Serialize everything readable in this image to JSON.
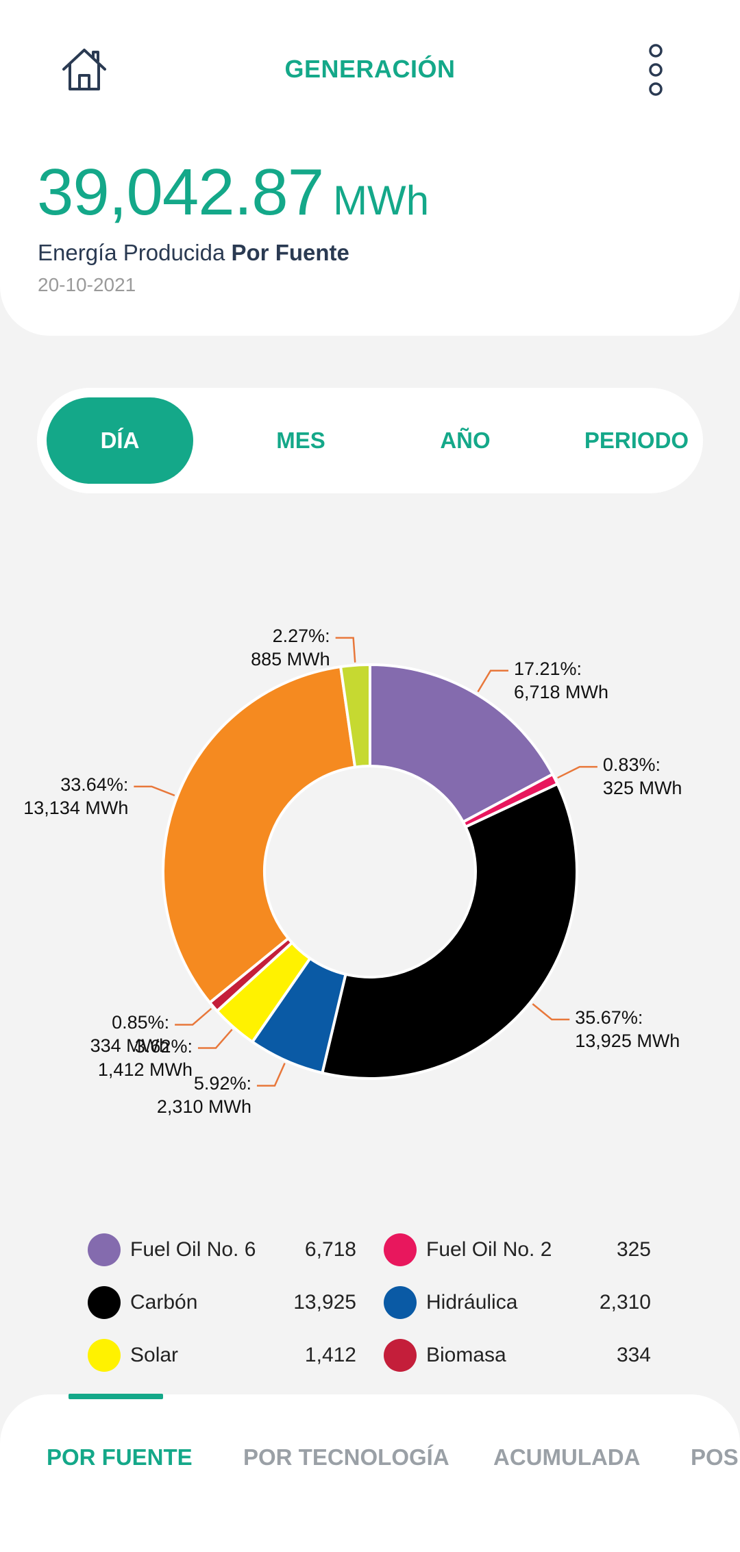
{
  "header": {
    "title": "GENERACIÓN",
    "total_value": "39,042.87",
    "total_unit": "MWh",
    "subtitle_prefix": "Energía Producida ",
    "subtitle_bold": "Por Fuente",
    "date": "20-10-2021"
  },
  "period_tabs": [
    {
      "label": "DÍA",
      "active": true
    },
    {
      "label": "MES",
      "active": false
    },
    {
      "label": "AÑO",
      "active": false
    },
    {
      "label": "PERIODO",
      "active": false
    }
  ],
  "chart_data": {
    "type": "pie",
    "subtype": "donut",
    "unit": "MWh",
    "slices": [
      {
        "name": "Fuel Oil No. 6",
        "value": 6718,
        "percent": 17.21,
        "color": "#846bae",
        "pct_label": "17.21%:",
        "val_label": "6,718 MWh"
      },
      {
        "name": "Fuel Oil No. 2",
        "value": 325,
        "percent": 0.83,
        "color": "#e8175d",
        "pct_label": "0.83%:",
        "val_label": "325 MWh"
      },
      {
        "name": "Carbón",
        "value": 13925,
        "percent": 35.67,
        "color": "#000000",
        "pct_label": "35.67%:",
        "val_label": "13,925 MWh"
      },
      {
        "name": "Hidráulica",
        "value": 2310,
        "percent": 5.92,
        "color": "#0a5aa5",
        "pct_label": "5.92%:",
        "val_label": "2,310 MWh"
      },
      {
        "name": "Solar",
        "value": 1412,
        "percent": 3.62,
        "color": "#fff200",
        "pct_label": "3.62%:",
        "val_label": "1,412 MWh"
      },
      {
        "name": "Biomasa",
        "value": 334,
        "percent": 0.85,
        "color": "#c41e3a",
        "pct_label": "0.85%:",
        "val_label": "334 MWh"
      },
      {
        "name": "",
        "value": 13134,
        "percent": 33.64,
        "color": "#f58a20",
        "pct_label": "33.64%:",
        "val_label": "13,134 MWh"
      },
      {
        "name": "",
        "value": 885,
        "percent": 2.27,
        "color": "#c6d931",
        "pct_label": "2.27%:",
        "val_label": "885 MWh"
      }
    ],
    "leader_color": "#e8773a"
  },
  "legend": [
    {
      "name": "Fuel Oil No. 6",
      "value": "6,718",
      "color": "#846bae"
    },
    {
      "name": "Fuel Oil No. 2",
      "value": "325",
      "color": "#e8175d"
    },
    {
      "name": "Carbón",
      "value": "13,925",
      "color": "#000000"
    },
    {
      "name": "Hidráulica",
      "value": "2,310",
      "color": "#0a5aa5"
    },
    {
      "name": "Solar",
      "value": "1,412",
      "color": "#fff200"
    },
    {
      "name": "Biomasa",
      "value": "334",
      "color": "#c41e3a"
    }
  ],
  "bottom_tabs": [
    {
      "label": "POR FUENTE",
      "active": true
    },
    {
      "label": "POR TECNOLOGÍA",
      "active": false
    },
    {
      "label": "ACUMULADA",
      "active": false
    },
    {
      "label": "POS",
      "active": false
    }
  ],
  "icons": {
    "home": "home-icon",
    "more": "more-vertical-icon"
  }
}
